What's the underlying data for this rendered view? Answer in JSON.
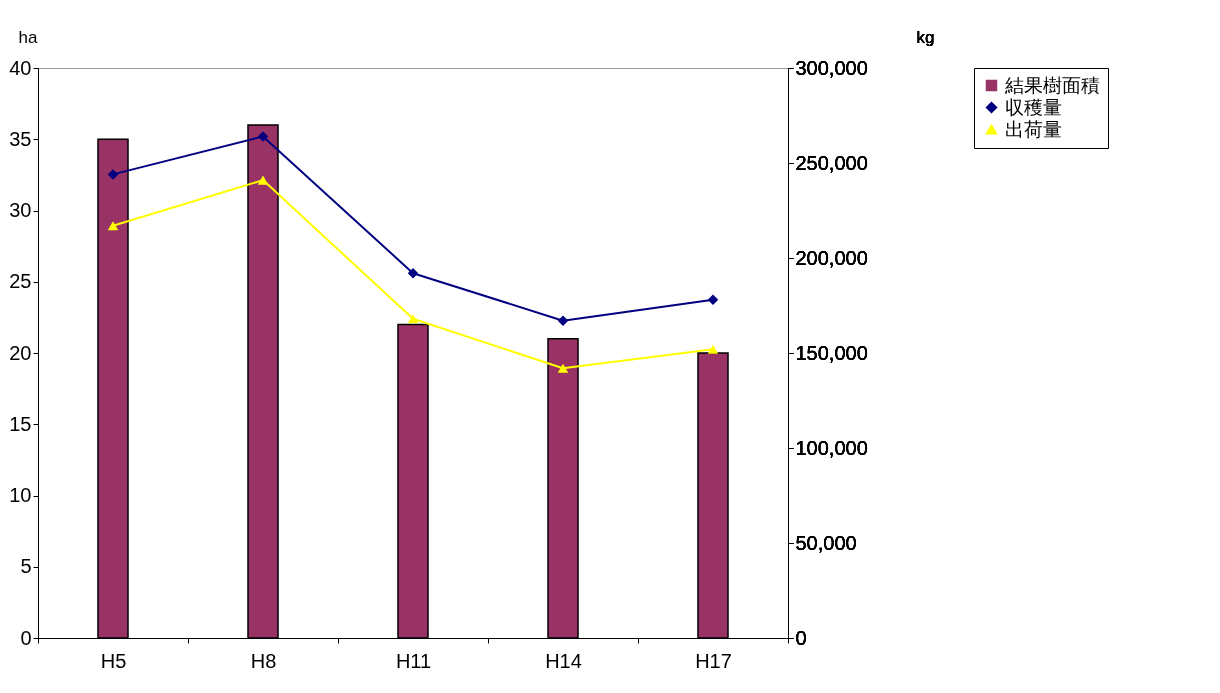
{
  "chart_data": {
    "type": "bar",
    "categories": [
      "H5",
      "H8",
      "H11",
      "H14",
      "H17"
    ],
    "ylabel": "ha",
    "y2label": "kg",
    "ylim": [
      0,
      40
    ],
    "yticks": [
      0,
      5,
      10,
      15,
      20,
      25,
      30,
      35,
      40
    ],
    "y2lim": [
      0,
      300000
    ],
    "y2ticks": [
      0,
      {
        "value": 50000,
        "label": "50,000"
      },
      {
        "value": 100000,
        "label": "100,000"
      },
      {
        "value": 150000,
        "label": "150,000"
      },
      {
        "value": 200000,
        "label": "200,000"
      },
      {
        "value": 250000,
        "label": "250,000"
      },
      {
        "value": 300000,
        "label": "300,000"
      }
    ],
    "legend": "right",
    "grid": false,
    "series": [
      {
        "name": "結果樹面積",
        "color": "#993366",
        "values": [
          35,
          36,
          22,
          21,
          20
        ]
      },
      {
        "name": "収穫量",
        "type": "line",
        "axis": "y2",
        "marker": "diamond",
        "color": "#000080",
        "values": [
          244000,
          264000,
          192000,
          167000,
          178000
        ]
      },
      {
        "name": "出荷量",
        "type": "line",
        "axis": "y2",
        "marker": "triangle",
        "color": "#ffff00",
        "values": [
          217000,
          241000,
          168000,
          142000,
          152000
        ]
      }
    ]
  }
}
